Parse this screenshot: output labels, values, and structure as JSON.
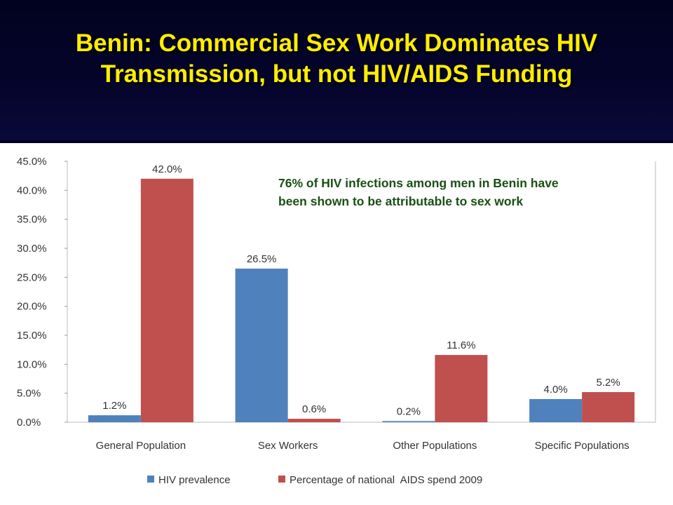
{
  "slide": {
    "title_line1": "Benin: Commercial Sex Work Dominates HIV",
    "title_line2": "Transmission, but not HIV/AIDS Funding",
    "annotation_line1": "76% of HIV infections among men in Benin have",
    "annotation_line2": "been shown to be attributable to sex work"
  },
  "colors": {
    "title": "#ffee00",
    "background": "#000022",
    "annotation": "#1a4f16"
  },
  "chart_data": {
    "type": "bar",
    "categories": [
      "General Population",
      "Sex Workers",
      "Other Populations",
      "Specific Populations"
    ],
    "series": [
      {
        "name": "HIV prevalence",
        "color": "#4f81bd",
        "values": [
          1.2,
          26.5,
          0.2,
          4.0
        ],
        "labels": [
          "1.2%",
          "26.5%",
          "0.2%",
          "4.0%"
        ]
      },
      {
        "name": "Percentage of national  AIDS spend 2009",
        "color": "#c0504d",
        "values": [
          42.0,
          0.6,
          11.6,
          5.2
        ],
        "labels": [
          "42.0%",
          "0.6%",
          "11.6%",
          "5.2%"
        ]
      }
    ],
    "ylim": [
      0,
      45
    ],
    "yticks": [
      "0.0%",
      "5.0%",
      "10.0%",
      "15.0%",
      "20.0%",
      "25.0%",
      "30.0%",
      "35.0%",
      "40.0%",
      "45.0%"
    ],
    "ytick_values": [
      0,
      5,
      10,
      15,
      20,
      25,
      30,
      35,
      40,
      45
    ],
    "grid": false,
    "legend_position": "bottom"
  }
}
